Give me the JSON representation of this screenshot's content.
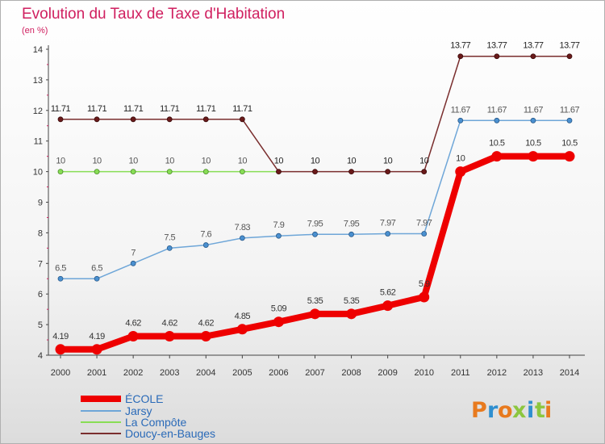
{
  "chart_data": {
    "type": "line",
    "title": "Evolution du Taux de Taxe d'Habitation",
    "subtitle": "(en %)",
    "x": [
      "2000",
      "2001",
      "2002",
      "2003",
      "2004",
      "2005",
      "2006",
      "2007",
      "2008",
      "2009",
      "2010",
      "2011",
      "2012",
      "2013",
      "2014"
    ],
    "ylim": [
      4,
      14
    ],
    "yticks": [
      "4",
      "5",
      "6",
      "7",
      "8",
      "9",
      "10",
      "11",
      "12",
      "13",
      "14"
    ],
    "grid": false,
    "legend_position": "bottom-left",
    "series": [
      {
        "name": "ÉCOLE",
        "color": "#ee0000",
        "values": [
          4.19,
          4.19,
          4.62,
          4.62,
          4.62,
          4.85,
          5.09,
          5.35,
          5.35,
          5.62,
          5.9,
          10,
          10.5,
          10.5,
          10.5
        ],
        "labels": [
          "4.19",
          "4.19",
          "4.62",
          "4.62",
          "4.62",
          "4.85",
          "5.09",
          "5.35",
          "5.35",
          "5.62",
          "5.9",
          "10",
          "10.5",
          "10.5",
          "10.5"
        ]
      },
      {
        "name": "Jarsy",
        "color": "#6ea6d8",
        "values": [
          6.5,
          6.5,
          7,
          7.5,
          7.6,
          7.83,
          7.9,
          7.95,
          7.95,
          7.97,
          7.97,
          11.67,
          11.67,
          11.67,
          11.67
        ],
        "labels": [
          "6.5",
          "6.5",
          "7",
          "7.5",
          "7.6",
          "7.83",
          "7.9",
          "7.95",
          "7.95",
          "7.97",
          "7.97",
          "11.67",
          "11.67",
          "11.67",
          "11.67"
        ]
      },
      {
        "name": "La Compôte",
        "color": "#88dd55",
        "values": [
          10,
          10,
          10,
          10,
          10,
          10,
          null,
          null,
          null,
          null,
          null,
          null,
          null,
          null,
          null
        ],
        "labels": [
          "10",
          "10",
          "10",
          "10",
          "10",
          "10",
          "",
          "",
          "",
          "",
          "",
          "",
          "",
          "",
          ""
        ]
      },
      {
        "name": "Doucy-en-Bauges",
        "color": "#7a2e2e",
        "values": [
          11.71,
          11.71,
          11.71,
          11.71,
          11.71,
          11.71,
          10,
          10,
          10,
          10,
          10,
          13.77,
          13.77,
          13.77,
          13.77
        ],
        "labels": [
          "11.71",
          "11.71",
          "11.71",
          "11.71",
          "11.71",
          "11.71",
          "10",
          "10",
          "10",
          "10",
          "10",
          "13.77",
          "13.77",
          "13.77",
          "13.77"
        ]
      }
    ]
  },
  "branding": {
    "logo_letters": [
      "P",
      "r",
      "o",
      "x",
      "i",
      "t",
      "i"
    ],
    "logo_colors": [
      "#e87a1e",
      "#2f8fd0",
      "#e87a1e",
      "#8cc63f",
      "#2f8fd0",
      "#8cc63f",
      "#e87a1e"
    ]
  }
}
